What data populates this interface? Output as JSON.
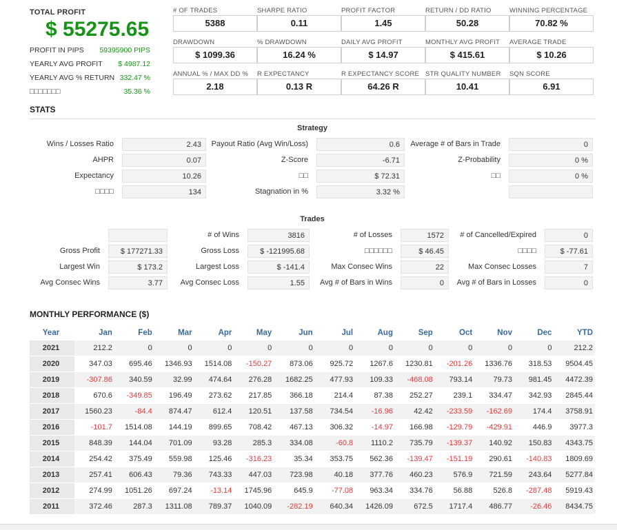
{
  "summary": {
    "total_profit_label": "TOTAL PROFIT",
    "total_profit_value": "$ 55275.65",
    "rows": [
      {
        "label": "PROFIT IN PIPS",
        "value": "59395900 PIPS"
      },
      {
        "label": "YEARLY AVG PROFIT",
        "value": "$ 4987.12"
      },
      {
        "label": "YEARLY AVG % RETURN",
        "value": "332.47 %"
      },
      {
        "label": "□□□□□□□",
        "value": "35.36 %"
      }
    ]
  },
  "metrics": [
    {
      "label": "# OF TRADES",
      "value": "5388"
    },
    {
      "label": "SHARPE RATIO",
      "value": "0.11"
    },
    {
      "label": "PROFIT FACTOR",
      "value": "1.45"
    },
    {
      "label": "RETURN / DD RATIO",
      "value": "50.28"
    },
    {
      "label": "WINNING PERCENTAGE",
      "value": "70.82 %"
    },
    {
      "label": "DRAWDOWN",
      "value": "$ 1099.36"
    },
    {
      "label": "% DRAWDOWN",
      "value": "16.24 %"
    },
    {
      "label": "DAILY AVG PROFIT",
      "value": "$ 14.97"
    },
    {
      "label": "MONTHLY AVG PROFIT",
      "value": "$ 415.61"
    },
    {
      "label": "AVERAGE TRADE",
      "value": "$ 10.26"
    },
    {
      "label": "ANNUAL % / MAX DD %",
      "value": "2.18"
    },
    {
      "label": "R EXPECTANCY",
      "value": "0.13 R"
    },
    {
      "label": "R EXPECTANCY SCORE",
      "value": "64.26 R"
    },
    {
      "label": "STR QUALITY NUMBER",
      "value": "10.41"
    },
    {
      "label": "SQN SCORE",
      "value": "6.91"
    }
  ],
  "stats_title": "STATS",
  "strategy": {
    "title": "Strategy",
    "rows": [
      [
        {
          "label": "Wins / Losses Ratio",
          "value": "2.43"
        },
        {
          "label": "Payout Ratio (Avg Win/Loss)",
          "value": "0.6"
        },
        {
          "label": "Average # of Bars in Trade",
          "value": "0"
        }
      ],
      [
        {
          "label": "AHPR",
          "value": "0.07"
        },
        {
          "label": "Z-Score",
          "value": "-6.71"
        },
        {
          "label": "Z-Probability",
          "value": "0 %"
        }
      ],
      [
        {
          "label": "Expectancy",
          "value": "10.26"
        },
        {
          "label": "□□",
          "value": "$ 72.31"
        },
        {
          "label": "□□",
          "value": "0 %"
        }
      ],
      [
        {
          "label": "□□□□",
          "value": "134"
        },
        {
          "label": "Stagnation in %",
          "value": "3.32 %"
        },
        {
          "label": "",
          "value": ""
        }
      ]
    ]
  },
  "trades": {
    "title": "Trades",
    "rows": [
      [
        {
          "label": "",
          "value": ""
        },
        {
          "label": "# of Wins",
          "value": "3816"
        },
        {
          "label": "# of Losses",
          "value": "1572"
        },
        {
          "label": "# of Cancelled/Expired",
          "value": "0"
        }
      ],
      [
        {
          "label": "Gross Profit",
          "value": "$ 177271.33"
        },
        {
          "label": "Gross Loss",
          "value": "$ -121995.68"
        },
        {
          "label": "□□□□□□",
          "value": "$ 46.45"
        },
        {
          "label": "□□□□",
          "value": "$ -77.61"
        }
      ],
      [
        {
          "label": "Largest Win",
          "value": "$ 173.2"
        },
        {
          "label": "Largest Loss",
          "value": "$ -141.4"
        },
        {
          "label": "Max Consec Wins",
          "value": "22"
        },
        {
          "label": "Max Consec Losses",
          "value": "7"
        }
      ],
      [
        {
          "label": "Avg Consec Wins",
          "value": "3.77"
        },
        {
          "label": "Avg Consec Loss",
          "value": "1.55"
        },
        {
          "label": "Avg # of Bars in Wins",
          "value": "0"
        },
        {
          "label": "Avg # of Bars in Losses",
          "value": "0"
        }
      ]
    ]
  },
  "monthly": {
    "title": "MONTHLY PERFORMANCE ($)",
    "headers": [
      "Year",
      "Jan",
      "Feb",
      "Mar",
      "Apr",
      "May",
      "Jun",
      "Jul",
      "Aug",
      "Sep",
      "Oct",
      "Nov",
      "Dec",
      "YTD"
    ],
    "rows": [
      [
        "2021",
        "212.2",
        "0",
        "0",
        "0",
        "0",
        "0",
        "0",
        "0",
        "0",
        "0",
        "0",
        "0",
        "212.2"
      ],
      [
        "2020",
        "347.03",
        "695.46",
        "1346.93",
        "1514.08",
        "-150.27",
        "873.06",
        "925.72",
        "1267.6",
        "1230.81",
        "-201.26",
        "1336.76",
        "318.53",
        "9504.45"
      ],
      [
        "2019",
        "-307.86",
        "340.59",
        "32.99",
        "474.64",
        "276.28",
        "1682.25",
        "477.93",
        "109.33",
        "-468.08",
        "793.14",
        "79.73",
        "981.45",
        "4472.39"
      ],
      [
        "2018",
        "670.6",
        "-349.85",
        "196.49",
        "273.62",
        "217.85",
        "366.18",
        "214.4",
        "87.38",
        "252.27",
        "239.1",
        "334.47",
        "342.93",
        "2845.44"
      ],
      [
        "2017",
        "1560.23",
        "-84.4",
        "874.47",
        "612.4",
        "120.51",
        "137.58",
        "734.54",
        "-16.96",
        "42.42",
        "-233.59",
        "-162.69",
        "174.4",
        "3758.91"
      ],
      [
        "2016",
        "-101.7",
        "1514.08",
        "144.19",
        "899.65",
        "708.42",
        "467.13",
        "306.32",
        "-14.97",
        "166.98",
        "-129.79",
        "-429.91",
        "446.9",
        "3977.3"
      ],
      [
        "2015",
        "848.39",
        "144.04",
        "701.09",
        "93.28",
        "285.3",
        "334.08",
        "-60.8",
        "1110.2",
        "735.79",
        "-139.37",
        "140.92",
        "150.83",
        "4343.75"
      ],
      [
        "2014",
        "254.42",
        "375.49",
        "559.98",
        "125.46",
        "-316.23",
        "35.34",
        "353.75",
        "562.36",
        "-139.47",
        "-151.19",
        "290.61",
        "-140.83",
        "1809.69"
      ],
      [
        "2013",
        "257.41",
        "606.43",
        "79.36",
        "743.33",
        "447.03",
        "723.98",
        "40.18",
        "377.76",
        "460.23",
        "576.9",
        "721.59",
        "243.64",
        "5277.84"
      ],
      [
        "2012",
        "274.99",
        "1051.26",
        "697.24",
        "-13.14",
        "1745.96",
        "645.9",
        "-77.08",
        "963.34",
        "334.76",
        "56.88",
        "526.8",
        "-287.48",
        "5919.43"
      ],
      [
        "2011",
        "372.46",
        "287.3",
        "1311.08",
        "789.37",
        "1040.09",
        "-282.19",
        "640.34",
        "1426.09",
        "672.5",
        "1717.4",
        "486.77",
        "-26.46",
        "8434.75"
      ]
    ]
  },
  "colors": {
    "profit_green": "#179417",
    "negative_red": "#e23a3a",
    "header_blue": "#3a6a9a"
  }
}
